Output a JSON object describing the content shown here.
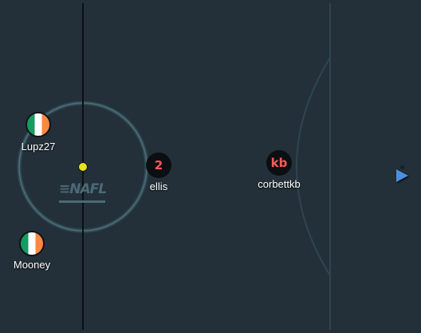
{
  "players": [
    {
      "id": "lupz27",
      "name": "Lupz27",
      "avatar": "ireland-flag",
      "avatar_text": ""
    },
    {
      "id": "mooney",
      "name": "Mooney",
      "avatar": "ireland-flag",
      "avatar_text": ""
    },
    {
      "id": "ellis",
      "name": "ellis",
      "avatar": "dark-circle",
      "avatar_text": "2"
    },
    {
      "id": "corbettkb",
      "name": "corbettkb",
      "avatar": "dark-circle",
      "avatar_text": "kb"
    }
  ],
  "logo": {
    "text": "≡NAFL",
    "icon": "nafl-logo"
  },
  "colors": {
    "pitch": "#243039",
    "center_circle": "#3f5a63",
    "halfway_line": "#0b0f12",
    "ball": "#e8e21c",
    "avatar_text": "#ff5a5a",
    "play_marker": "#4a90e2"
  },
  "icons": {
    "ball": "ball-icon",
    "play": "play-triangle-icon"
  }
}
